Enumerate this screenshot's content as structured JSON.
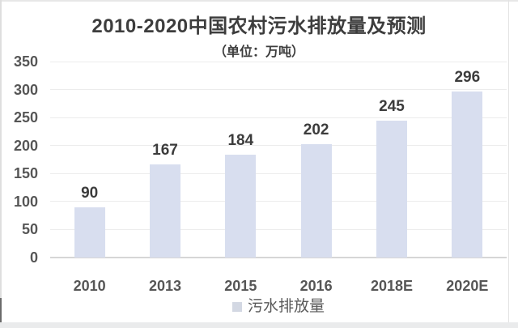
{
  "page": {
    "background": "#ffffff"
  },
  "chart": {
    "colors": {
      "bar": "#d8deef",
      "legend_swatch": "#d3d8e3",
      "gridline": "#ececec",
      "axis_line": "#d6d6d6",
      "title_text": "#3d3d3d",
      "value_label_text": "#3c3c3c",
      "tick_label_text": "#565656"
    },
    "legend": {
      "label": "污水排放量"
    }
  },
  "chart_data": {
    "type": "bar",
    "title": "2010-2020中国农村污水排放量及预测",
    "subtitle": "（单位：万吨）",
    "unit": "万吨",
    "categories": [
      "2010",
      "2013",
      "2015",
      "2016",
      "2018E",
      "2020E"
    ],
    "values": [
      90,
      167,
      184,
      202,
      245,
      296
    ],
    "series": [
      {
        "name": "污水排放量",
        "values": [
          90,
          167,
          184,
          202,
          245,
          296
        ]
      }
    ],
    "xlabel": "",
    "ylabel": "",
    "ylim": [
      0,
      350
    ],
    "yticks": [
      0,
      50,
      100,
      150,
      200,
      250,
      300,
      350
    ],
    "grid": true,
    "data_labels": true,
    "legend_position": "bottom"
  }
}
